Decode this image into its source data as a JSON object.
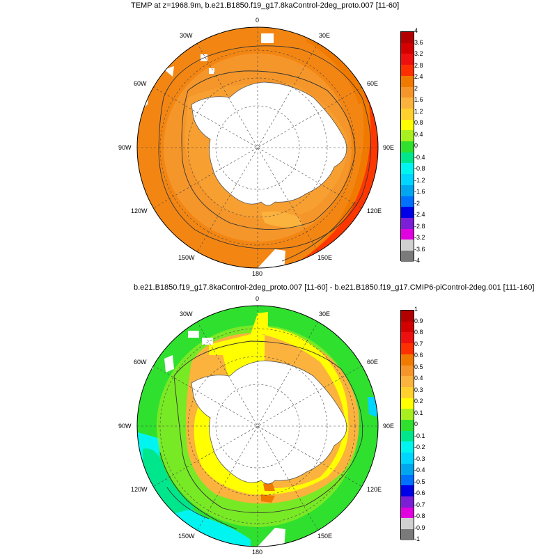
{
  "panels": [
    {
      "title": "TEMP at z=1968.9m, b.e21.B1850.f19_g17.8kaControl-2deg_proto.007 [11-60]",
      "lon_labels": {
        "n0": "0",
        "n30e": "30E",
        "n60e": "60E",
        "n90e": "90E",
        "n120e": "120E",
        "n150e": "150E",
        "n180": "180",
        "n150w": "150W",
        "n120w": "120W",
        "n90w": "90W",
        "n60w": "60W",
        "n30w": "30W"
      },
      "colorbar": {
        "ticks": [
          "4",
          "3.6",
          "3.2",
          "2.8",
          "2.4",
          "2",
          "1.6",
          "1.2",
          "0.8",
          "0.4",
          "0",
          "-0.4",
          "-0.8",
          "-1.2",
          "-1.6",
          "-2",
          "-2.4",
          "-2.8",
          "-3.2",
          "-3.6",
          "-4"
        ],
        "colors": [
          "#b30000",
          "#d40000",
          "#ee0f0f",
          "#ff3000",
          "#f07a00",
          "#f5962a",
          "#fbb33e",
          "#ffd02e",
          "#ffff00",
          "#a8ef1f",
          "#2fe02f",
          "#00e68c",
          "#00f5f0",
          "#00d5ff",
          "#00a7ef",
          "#0070ff",
          "#0000e8",
          "#7a1fd6",
          "#e000e0",
          "#d0d0d0",
          "#7a7a7a"
        ]
      }
    },
    {
      "title": "b.e21.B1850.f19_g17.8kaControl-2deg_proto.007 [11-60] - b.e21.B1850.f19_g17.CMIP6-piControl-2deg.001 [111-160]",
      "lon_labels": {
        "n0": "0",
        "n30e": "30E",
        "n60e": "60E",
        "n90e": "90E",
        "n120e": "120E",
        "n150e": "150E",
        "n180": "180",
        "n150w": "150W",
        "n120w": "120W",
        "n90w": "90W",
        "n60w": "60W",
        "n30w": "30W"
      },
      "colorbar": {
        "ticks": [
          "1",
          "0.9",
          "0.8",
          "0.7",
          "0.6",
          "0.5",
          "0.4",
          "0.3",
          "0.2",
          "0.1",
          "0",
          "-0.1",
          "-0.2",
          "-0.3",
          "-0.4",
          "-0.5",
          "-0.6",
          "-0.7",
          "-0.8",
          "-0.9",
          "-1"
        ],
        "colors": [
          "#b30000",
          "#d40000",
          "#ee0f0f",
          "#ff3000",
          "#f07a00",
          "#f5962a",
          "#fbb33e",
          "#ffd02e",
          "#ffff00",
          "#a8ef1f",
          "#2fe02f",
          "#00e68c",
          "#00f5f0",
          "#00d5ff",
          "#00a7ef",
          "#0070ff",
          "#0000e8",
          "#7a1fd6",
          "#e000e0",
          "#d0d0d0",
          "#7a7a7a"
        ]
      }
    }
  ]
}
